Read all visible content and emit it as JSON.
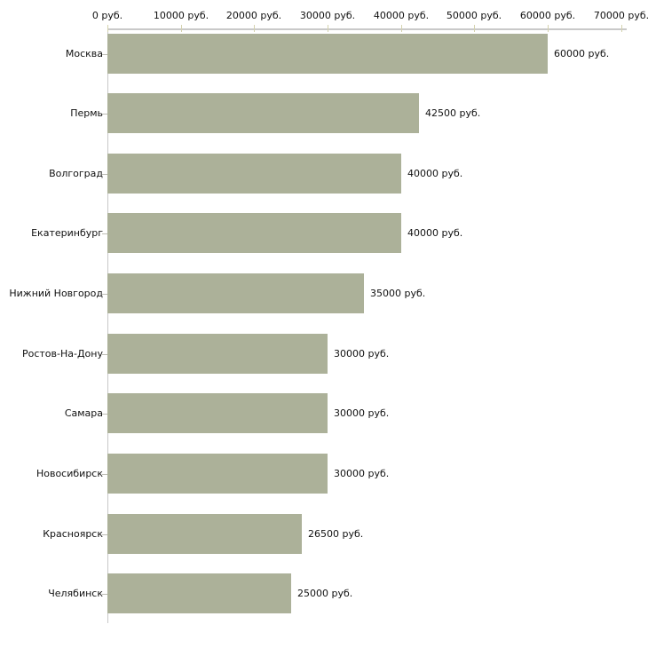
{
  "chart_data": {
    "type": "bar",
    "orientation": "horizontal",
    "title": "",
    "xlabel": "",
    "ylabel": "",
    "xlim": [
      0,
      70000
    ],
    "grid": false,
    "legend": false,
    "unit": "руб.",
    "categories": [
      "Москва",
      "Пермь",
      "Волгоград",
      "Екатеринбург",
      "Нижний Новгород",
      "Ростов-На-Дону",
      "Самара",
      "Новосибирск",
      "Красноярск",
      "Челябинск"
    ],
    "values": [
      60000,
      42500,
      40000,
      40000,
      35000,
      30000,
      30000,
      30000,
      26500,
      25000
    ],
    "value_labels": [
      "60000 руб.",
      "42500 руб.",
      "40000 руб.",
      "40000 руб.",
      "35000 руб.",
      "30000 руб.",
      "30000 руб.",
      "30000 руб.",
      "26500 руб.",
      "25000 руб."
    ],
    "x_ticks": [
      0,
      10000,
      20000,
      30000,
      40000,
      50000,
      60000,
      70000
    ],
    "x_tick_labels": [
      "0 руб.",
      "10000 руб.",
      "20000 руб.",
      "30000 руб.",
      "40000 руб.",
      "50000 руб.",
      "60000 руб.",
      "70000 руб."
    ],
    "colors": {
      "bar": "#acb199",
      "axis_line": "#c9c9c9",
      "axis_tick": "#d4d2ae",
      "category_tick": "#bdbdb5",
      "text": "#111111",
      "background": "#ffffff"
    }
  }
}
